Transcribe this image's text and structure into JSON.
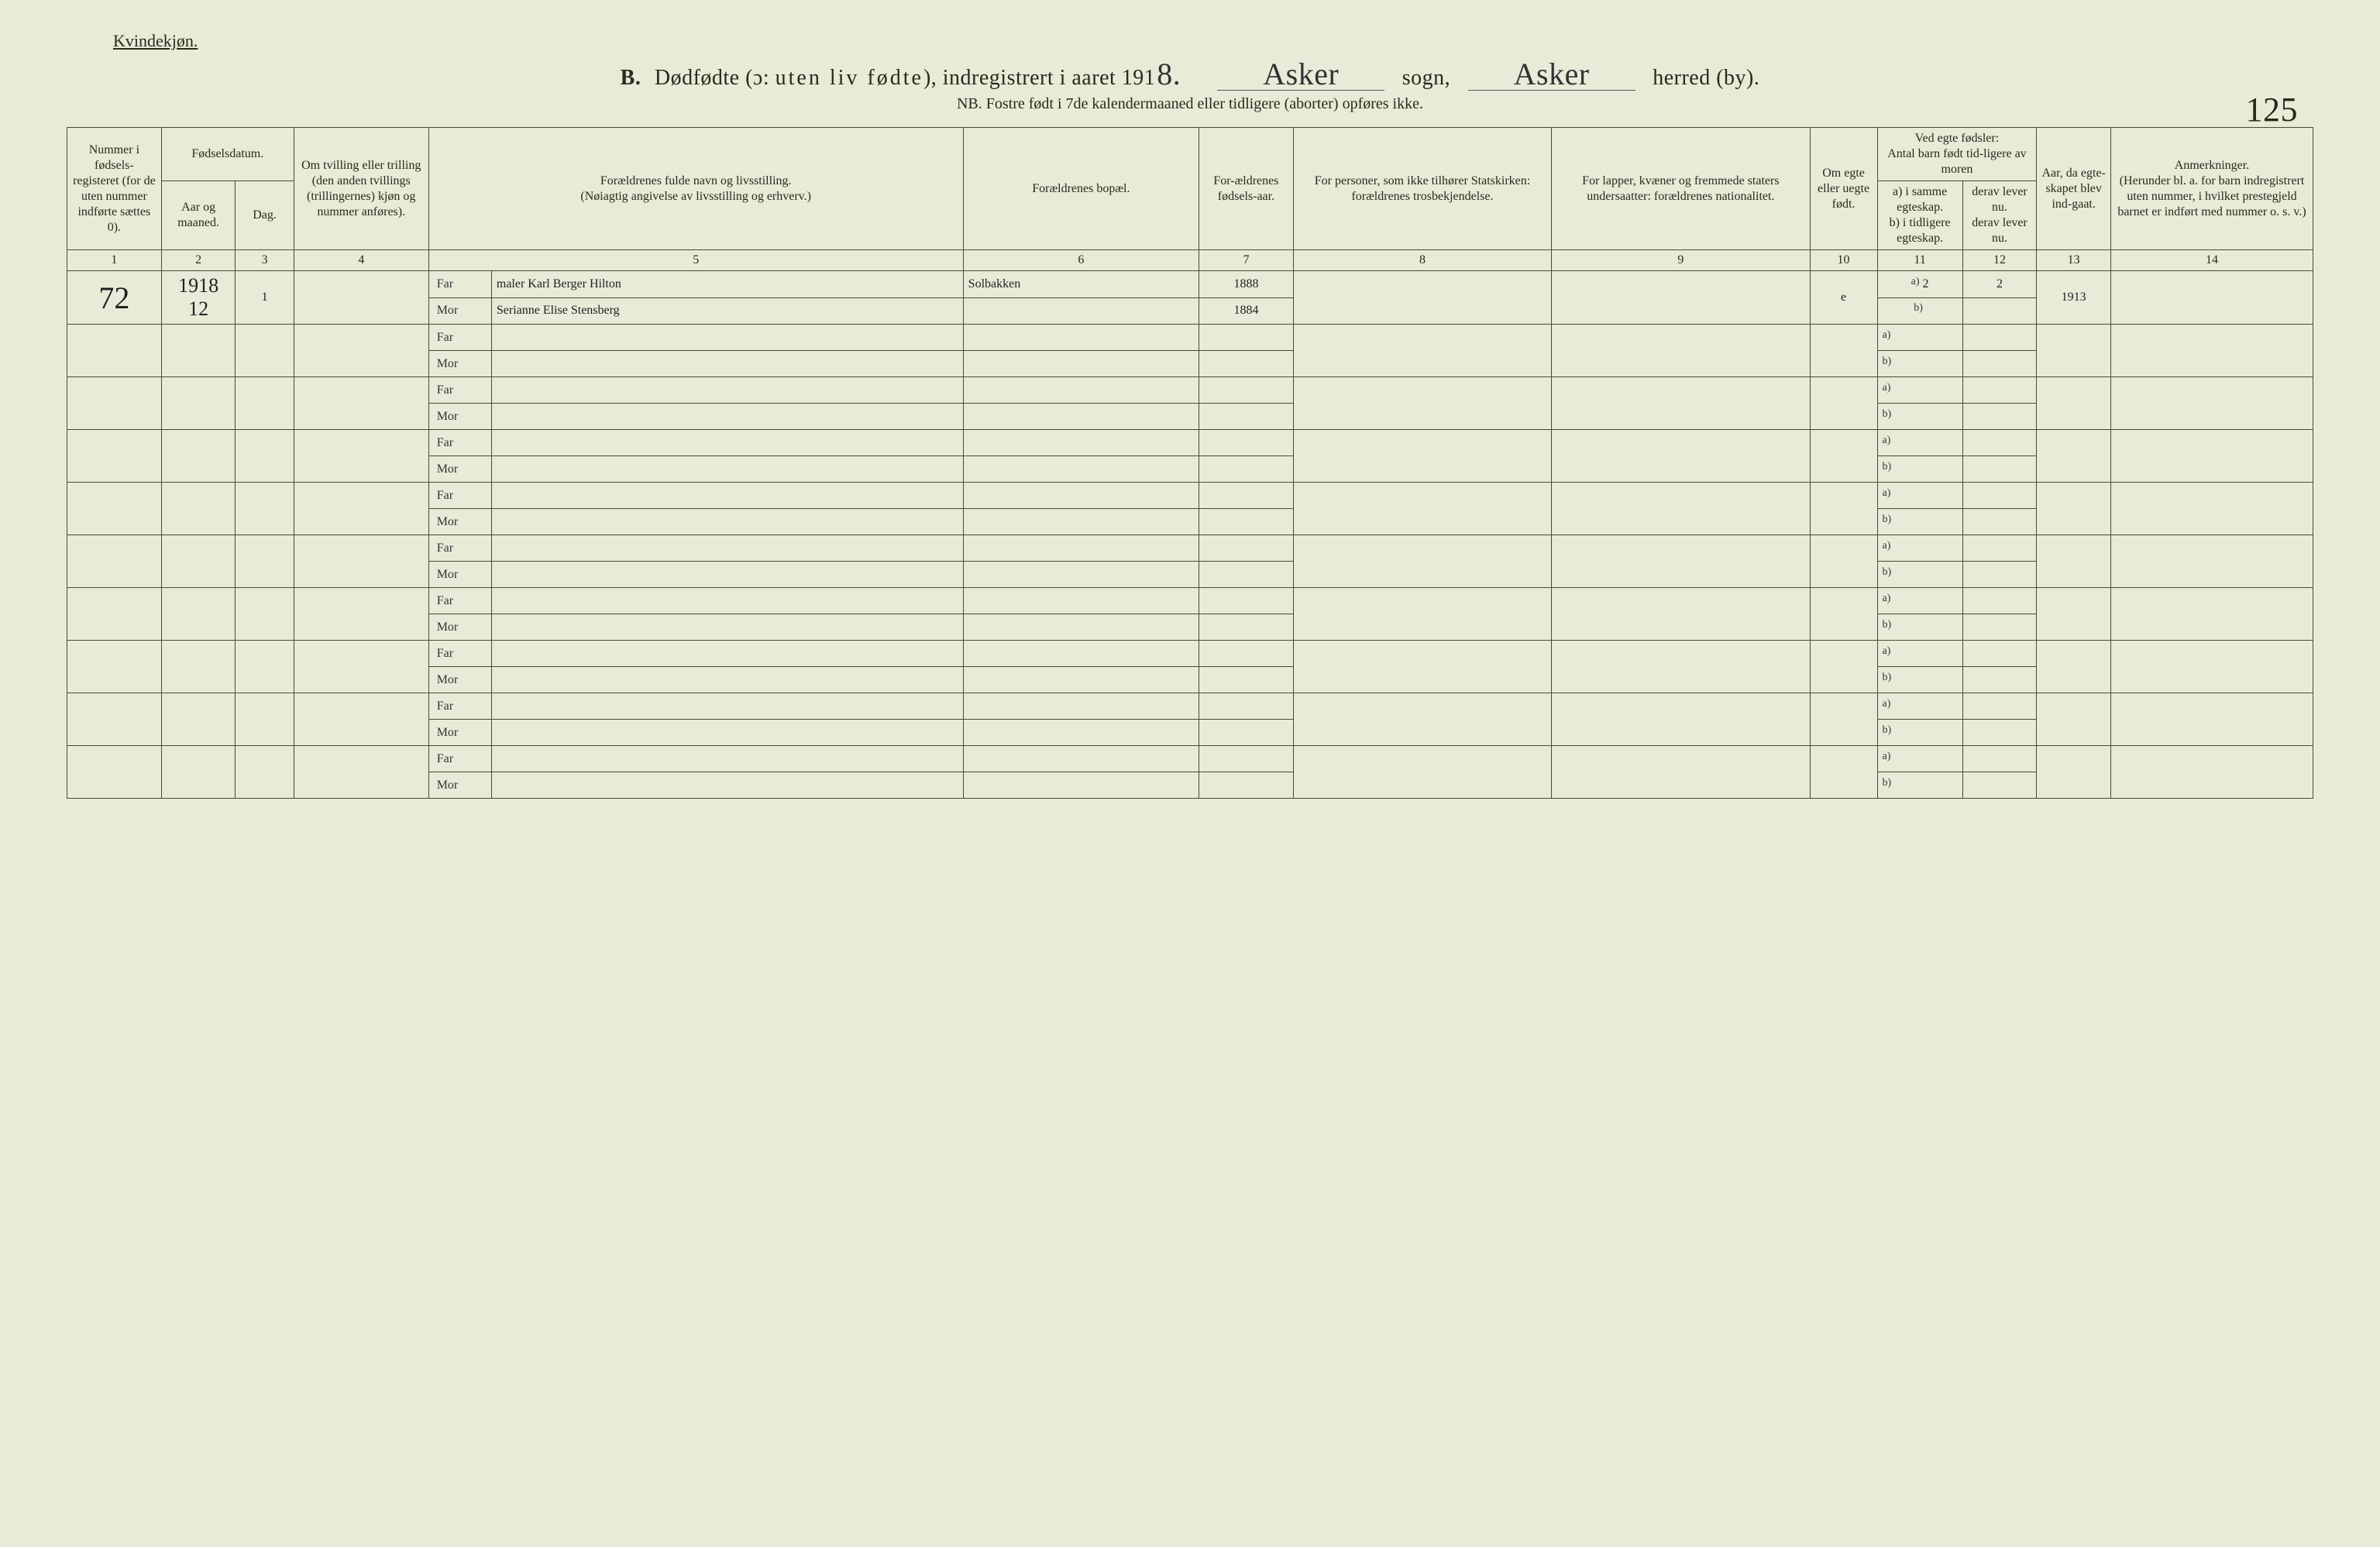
{
  "header": {
    "corner": "Kvindekjøn.",
    "title_b": "B.",
    "title_main": "Dødfødte (ɔ: ",
    "title_spaced": "uten liv fødte",
    "title_tail": "), indregistrert i aaret 191",
    "year_suffix": "8.",
    "sogn_label": "sogn,",
    "herred_label": "herred (by).",
    "parish": "Asker",
    "district": "Asker",
    "nb": "NB.  Fostre født i 7de kalendermaaned eller tidligere (aborter) opføres ikke.",
    "page_number": "125"
  },
  "columns": {
    "c1": "Nummer i fødsels-registeret (for de uten nummer indførte sættes 0).",
    "c23_top": "Fødselsdatum.",
    "c2": "Aar og maaned.",
    "c3": "Dag.",
    "c4": "Om tvilling eller trilling (den anden tvillings (trillingernes) kjøn og nummer anføres).",
    "c5": "Forældrenes fulde navn og livsstilling.\n(Nøiagtig angivelse av livsstilling og erhverv.)",
    "c6": "Forældrenes bopæl.",
    "c7": "For-ældrenes fødsels-aar.",
    "c8": "For personer, som ikke tilhører Statskirken: forældrenes trosbekjendelse.",
    "c9": "For lapper, kvæner og fremmede staters undersaatter: forældrenes nationalitet.",
    "c10": "Om egte eller uegte født.",
    "c11_12_top": "Ved egte fødsler:\nAntal barn født tid-ligere av moren",
    "c11": "a) i samme egteskap.\nb) i tidligere egteskap.",
    "c12": "derav lever nu.\nderav lever nu.",
    "c13": "Aar, da egte-skapet blev ind-gaat.",
    "c14": "Anmerkninger.\n(Herunder bl. a. for barn indregistrert uten nummer, i hvilket prestegjeld barnet er indført med nummer o. s. v.)",
    "nums": [
      "1",
      "2",
      "3",
      "4",
      "",
      "5",
      "6",
      "7",
      "8",
      "9",
      "10",
      "11",
      "12",
      "13",
      "14"
    ]
  },
  "entry": {
    "num": "72",
    "year_month": "1918\n12",
    "day": "1",
    "c4": "",
    "far_label": "Far",
    "mor_label": "Mor",
    "far_text": "maler Karl Berger Hilton",
    "mor_text": "Serianne Elise Stensberg",
    "bopel": "Solbakken",
    "far_year": "1888",
    "mor_year": "1884",
    "c8": "",
    "c9": "",
    "egte": "e",
    "c11a": "2",
    "c12a": "2",
    "c13": "1913",
    "c11b": "",
    "c12b": ""
  },
  "blank": {
    "far": "Far",
    "mor": "Mor"
  },
  "style": {
    "bg": "#e8ebd8",
    "border": "#4a4a36",
    "col_widths_pct": [
      4.2,
      3.3,
      2.6,
      6.0,
      2.8,
      21.0,
      10.5,
      4.2,
      11.5,
      11.5,
      3.0,
      3.8,
      3.3,
      3.3,
      9.0
    ]
  }
}
